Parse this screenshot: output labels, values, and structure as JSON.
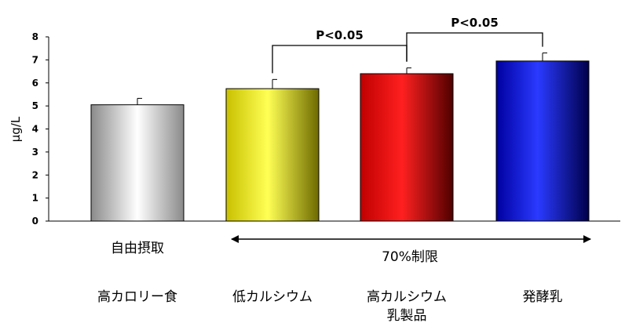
{
  "chart_data": {
    "type": "bar",
    "ylabel": "μg/L",
    "ylim": [
      0,
      8
    ],
    "yticks": [
      0,
      1,
      2,
      3,
      4,
      5,
      6,
      7,
      8
    ],
    "grid": false,
    "categories": [
      "高カロリー食",
      "低カルシウム",
      "高カルシウム 乳製品",
      "発酵乳"
    ],
    "sub_labels": [
      "自由摂取",
      "",
      "",
      ""
    ],
    "values": [
      5.05,
      5.75,
      6.4,
      6.95
    ],
    "errors": [
      0.28,
      0.4,
      0.25,
      0.35
    ],
    "colors": [
      "#9a9a9a",
      "#e8e000",
      "#ee0000",
      "#1010c0"
    ],
    "annotations": [
      {
        "from": 1,
        "to": 2,
        "text": "P<0.05"
      },
      {
        "from": 2,
        "to": 3,
        "text": "P<0.05"
      }
    ],
    "group_label": {
      "text": "70%制限",
      "from": 1,
      "to": 3
    }
  }
}
